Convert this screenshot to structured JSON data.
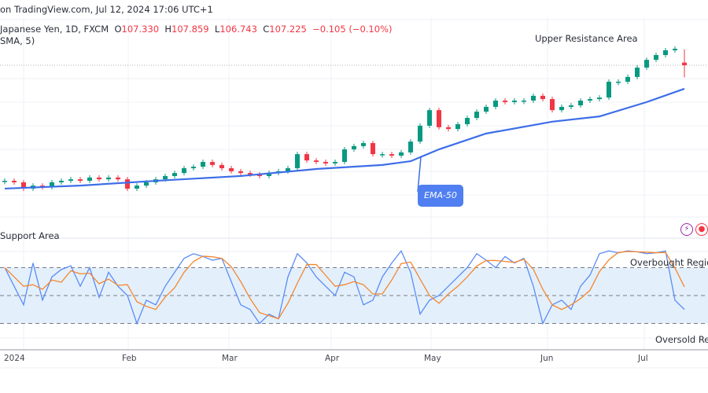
{
  "header": {
    "published": "on TradingView.com, Jul 12, 2024 17:06 UTC+1",
    "symbol": "Japanese Yen, 1D, FXCM",
    "open_label": "O",
    "open": "107.330",
    "high_label": "H",
    "high": "107.859",
    "low_label": "L",
    "low": "106.743",
    "close_label": "C",
    "close": "107.225",
    "change": "−0.105 (−0.10%)",
    "indicator": "SMA, 5)"
  },
  "annotations": {
    "upper_resistance": "Upper Resistance Area",
    "support": "Support Area",
    "overbought": "Overbought Region",
    "oversold": "Oversold Region",
    "ema_callout": "EMA-50"
  },
  "time_axis": [
    "2024",
    "Feb",
    "Mar",
    "Apr",
    "May",
    "Jun",
    "Jul"
  ],
  "colors": {
    "up": "#089981",
    "down": "#f23645",
    "ema": "#3d6ee8",
    "k": "#5b8cf5",
    "d": "#f5862e",
    "band": "#e3f0fc"
  },
  "icons": [
    "lightning-icon",
    "record-icon"
  ],
  "chart_data": [
    {
      "type": "candlestick",
      "closes": [
        102.63,
        102.57,
        102.32,
        102.44,
        102.38,
        102.57,
        102.63,
        102.69,
        102.63,
        102.76,
        102.69,
        102.76,
        102.69,
        102.32,
        102.44,
        102.57,
        102.69,
        102.82,
        102.94,
        103.13,
        103.19,
        103.38,
        103.26,
        103.13,
        103.01,
        102.94,
        102.88,
        102.82,
        102.94,
        103.01,
        103.13,
        103.69,
        103.44,
        103.38,
        103.32,
        103.38,
        103.88,
        104.01,
        104.13,
        103.69,
        103.69,
        103.63,
        103.76,
        104.19,
        104.82,
        105.44,
        104.76,
        104.69,
        104.88,
        105.13,
        105.38,
        105.57,
        105.82,
        105.76,
        105.82,
        105.82,
        106.01,
        105.88,
        105.44,
        105.57,
        105.63,
        105.82,
        105.88,
        105.94,
        106.57,
        106.57,
        106.76,
        107.13,
        107.44,
        107.63,
        107.82,
        107.88,
        107.225
      ],
      "last_bar": {
        "open": 107.33,
        "high": 107.859,
        "low": 106.743,
        "close": 107.225
      },
      "ema50": [
        [
          0,
          102.32
        ],
        [
          8,
          102.44
        ],
        [
          16,
          102.63
        ],
        [
          25,
          102.82
        ],
        [
          33,
          103.1
        ],
        [
          40,
          103.26
        ],
        [
          43,
          103.41
        ],
        [
          46,
          103.88
        ],
        [
          51,
          104.51
        ],
        [
          58,
          104.98
        ],
        [
          63,
          105.19
        ],
        [
          68,
          105.76
        ],
        [
          72,
          106.29
        ]
      ]
    },
    {
      "type": "line",
      "levels": [
        80,
        50,
        20
      ],
      "ylim": [
        0,
        100
      ],
      "k": [
        80,
        60,
        40,
        85,
        45,
        70,
        78,
        82,
        60,
        80,
        48,
        75,
        60,
        50,
        20,
        45,
        40,
        60,
        75,
        90,
        95,
        92,
        88,
        90,
        65,
        40,
        35,
        20,
        30,
        25,
        70,
        95,
        85,
        70,
        60,
        50,
        75,
        70,
        40,
        45,
        70,
        85,
        98,
        75,
        30,
        45,
        50,
        60,
        70,
        80,
        95,
        88,
        80,
        92,
        85,
        90,
        60,
        20,
        40,
        45,
        35,
        60,
        72,
        95,
        98,
        96,
        98,
        97,
        95,
        96,
        98,
        45,
        35
      ]
    }
  ]
}
